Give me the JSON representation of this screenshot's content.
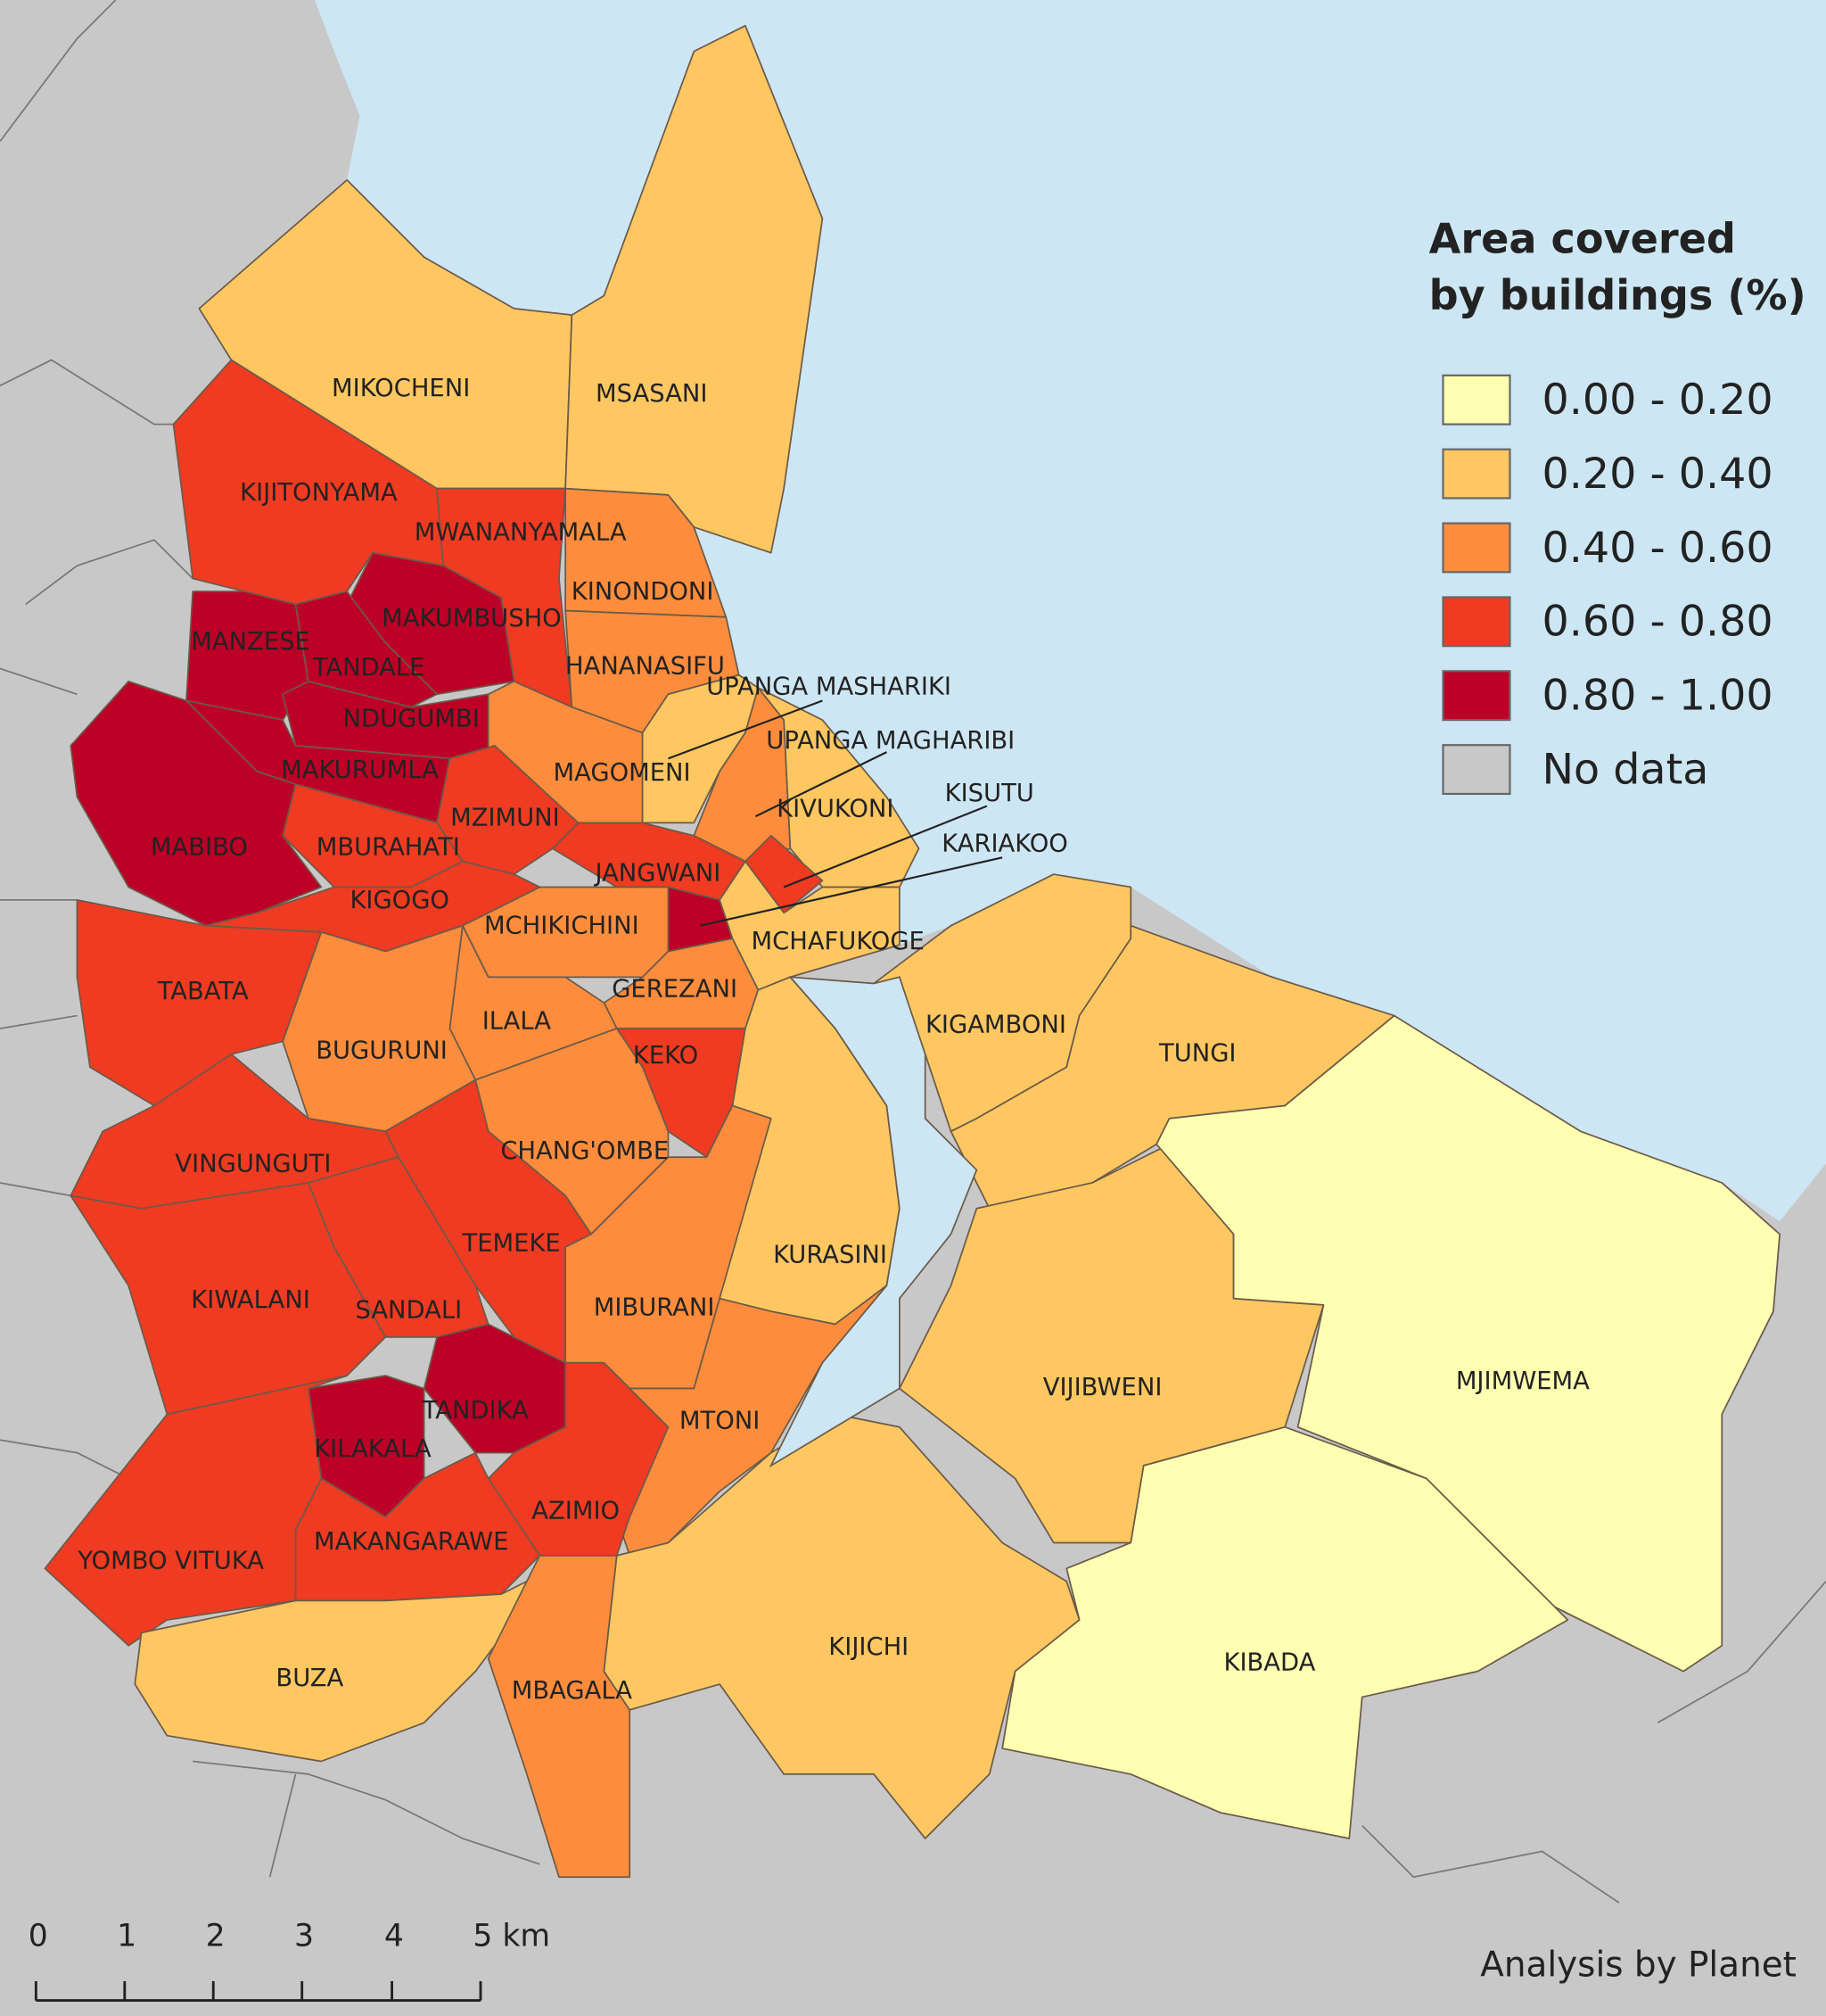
{
  "map": {
    "legend": {
      "title": [
        "Area covered",
        "by buildings (%)"
      ],
      "items": [
        {
          "label": "0.00 - 0.20",
          "color": "#ffffb2"
        },
        {
          "label": "0.20 - 0.40",
          "color": "#fec761"
        },
        {
          "label": "0.40 - 0.60",
          "color": "#fd8d3c"
        },
        {
          "label": "0.60 - 0.80",
          "color": "#ef3b21"
        },
        {
          "label": "0.80 - 1.00",
          "color": "#bd0026"
        },
        {
          "label": "No data",
          "color": "#c8c8c8"
        }
      ]
    },
    "wards": [
      {
        "name": "MIKOCHENI",
        "color": "#fec761"
      },
      {
        "name": "MSASANI",
        "color": "#fec761"
      },
      {
        "name": "KIJITONYAMA",
        "color": "#ef3b21"
      },
      {
        "name": "MWANANYAMALA",
        "color": "#ef3b21"
      },
      {
        "name": "MAKUMBUSHO",
        "color": "#bd0026"
      },
      {
        "name": "KINONDONI",
        "color": "#fd8d3c"
      },
      {
        "name": "MANZESE",
        "color": "#bd0026"
      },
      {
        "name": "TANDALE",
        "color": "#bd0026"
      },
      {
        "name": "HANANASIFU",
        "color": "#fd8d3c"
      },
      {
        "name": "NDUGUMBI",
        "color": "#bd0026"
      },
      {
        "name": "MAGOMENI",
        "color": "#fd8d3c"
      },
      {
        "name": "UPANGA MASHARIKI",
        "color": "#fec761"
      },
      {
        "name": "UPANGA MAGHARIBI",
        "color": "#fd8d3c"
      },
      {
        "name": "KIVUKONI",
        "color": "#fec761"
      },
      {
        "name": "KISUTU",
        "color": "#ef3b21"
      },
      {
        "name": "MAKURUMLA",
        "color": "#bd0026"
      },
      {
        "name": "MABIBO",
        "color": "#bd0026"
      },
      {
        "name": "MZIMUNI",
        "color": "#ef3b21"
      },
      {
        "name": "MBURAHATI",
        "color": "#ef3b21"
      },
      {
        "name": "KIGOGO",
        "color": "#ef3b21"
      },
      {
        "name": "JANGWANI",
        "color": "#ef3b21"
      },
      {
        "name": "KARIAKOO",
        "color": "#bd0026"
      },
      {
        "name": "MCHIKICHINI",
        "color": "#fd8d3c"
      },
      {
        "name": "MCHAFUKOGE",
        "color": "#fec761"
      },
      {
        "name": "GEREZANI",
        "color": "#fd8d3c"
      },
      {
        "name": "ILALA",
        "color": "#fd8d3c"
      },
      {
        "name": "BUGURUNI",
        "color": "#fd8d3c"
      },
      {
        "name": "TABATA",
        "color": "#ef3b21"
      },
      {
        "name": "KEKO",
        "color": "#ef3b21"
      },
      {
        "name": "CHANG'OMBE",
        "color": "#fd8d3c"
      },
      {
        "name": "VINGUNGUTI",
        "color": "#ef3b21"
      },
      {
        "name": "TEMEKE",
        "color": "#ef3b21"
      },
      {
        "name": "KURASINI",
        "color": "#fec761"
      },
      {
        "name": "MIBURANI",
        "color": "#fd8d3c"
      },
      {
        "name": "KIWALANI",
        "color": "#ef3b21"
      },
      {
        "name": "SANDALI",
        "color": "#ef3b21"
      },
      {
        "name": "TANDIKA",
        "color": "#bd0026"
      },
      {
        "name": "KILAKALA",
        "color": "#bd0026"
      },
      {
        "name": "MTONI",
        "color": "#fd8d3c"
      },
      {
        "name": "AZIMIO",
        "color": "#ef3b21"
      },
      {
        "name": "MAKANGARAWE",
        "color": "#ef3b21"
      },
      {
        "name": "YOMBO VITUKA",
        "color": "#ef3b21"
      },
      {
        "name": "BUZA",
        "color": "#fec761"
      },
      {
        "name": "MBAGALA",
        "color": "#fd8d3c"
      },
      {
        "name": "KIJICHI",
        "color": "#fec761"
      },
      {
        "name": "KIGAMBONI",
        "color": "#fec761"
      },
      {
        "name": "TUNGI",
        "color": "#fec761"
      },
      {
        "name": "VIJIBWENI",
        "color": "#fec761"
      },
      {
        "name": "MJIMWEMA",
        "color": "#ffffb2"
      },
      {
        "name": "KIBADA",
        "color": "#ffffb2"
      }
    ],
    "scale_bar": {
      "labels": [
        "0",
        "1",
        "2",
        "3",
        "4",
        "5 km"
      ]
    },
    "attribution": "Analysis by Planet"
  }
}
